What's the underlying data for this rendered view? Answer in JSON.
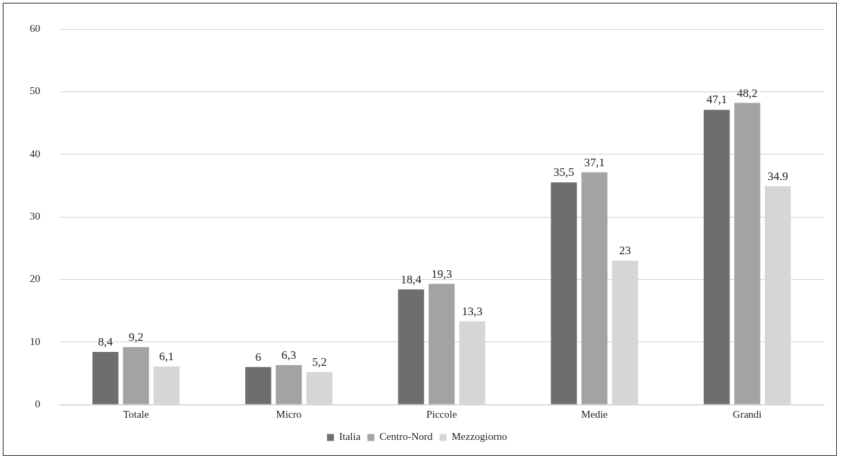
{
  "chart_data": {
    "type": "bar",
    "categories": [
      "Totale",
      "Micro",
      "Piccole",
      "Medie",
      "Grandi"
    ],
    "series": [
      {
        "name": "Italia",
        "color": "#6e6e6e",
        "values": [
          8.4,
          6,
          18.4,
          35.5,
          47.1
        ],
        "value_labels": [
          "8,4",
          "6",
          "18,4",
          "35,5",
          "47,1"
        ]
      },
      {
        "name": "Centro-Nord",
        "color": "#a3a3a3",
        "values": [
          9.2,
          6.3,
          19.3,
          37.1,
          48.2
        ],
        "value_labels": [
          "9,2",
          "6,3",
          "19,3",
          "37,1",
          "48,2"
        ]
      },
      {
        "name": "Mezzogiorno",
        "color": "#d6d6d6",
        "values": [
          6.1,
          5.2,
          13.3,
          23,
          34.9
        ],
        "value_labels": [
          "6,1",
          "5,2",
          "13,3",
          "23",
          "34.9"
        ]
      }
    ],
    "ylim": [
      0,
      60
    ],
    "yticks": [
      0,
      10,
      20,
      30,
      40,
      50,
      60
    ],
    "grid": "y",
    "legend": "bottom"
  }
}
